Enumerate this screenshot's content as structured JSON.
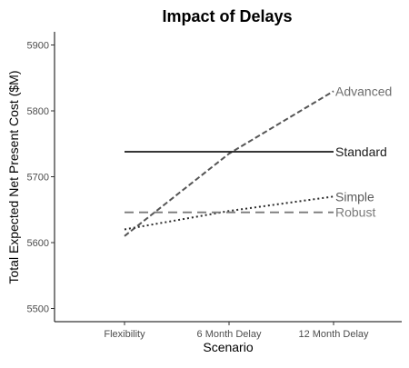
{
  "chart_data": {
    "type": "line",
    "title": "Impact of Delays",
    "xlabel": "Scenario",
    "ylabel": "Total Expected Net Present Cost ($M)",
    "categories": [
      "Flexibility",
      "6 Month Delay",
      "12 Month Delay"
    ],
    "ylim": [
      5480,
      5920
    ],
    "yticks": [
      5500,
      5600,
      5700,
      5800,
      5900
    ],
    "grid": false,
    "legend": "direct labels at line ends (right)",
    "series": [
      {
        "name": "Advanced",
        "values": [
          5610,
          5735,
          5830
        ],
        "color": "#555555",
        "label_color": "#6e6e6e",
        "dash": "6,3",
        "width": 2
      },
      {
        "name": "Standard",
        "values": [
          5738,
          5738,
          5738
        ],
        "color": "#1a1a1a",
        "label_color": "#1a1a1a",
        "dash": "",
        "width": 1.8
      },
      {
        "name": "Simple",
        "values": [
          5620,
          5648,
          5670
        ],
        "color": "#2b2b2b",
        "label_color": "#5a5a5a",
        "dash": "2,3",
        "width": 2
      },
      {
        "name": "Robust",
        "values": [
          5646,
          5646,
          5646
        ],
        "color": "#7a7a7a",
        "label_color": "#7a7a7a",
        "dash": "10,6",
        "width": 1.8
      }
    ]
  }
}
